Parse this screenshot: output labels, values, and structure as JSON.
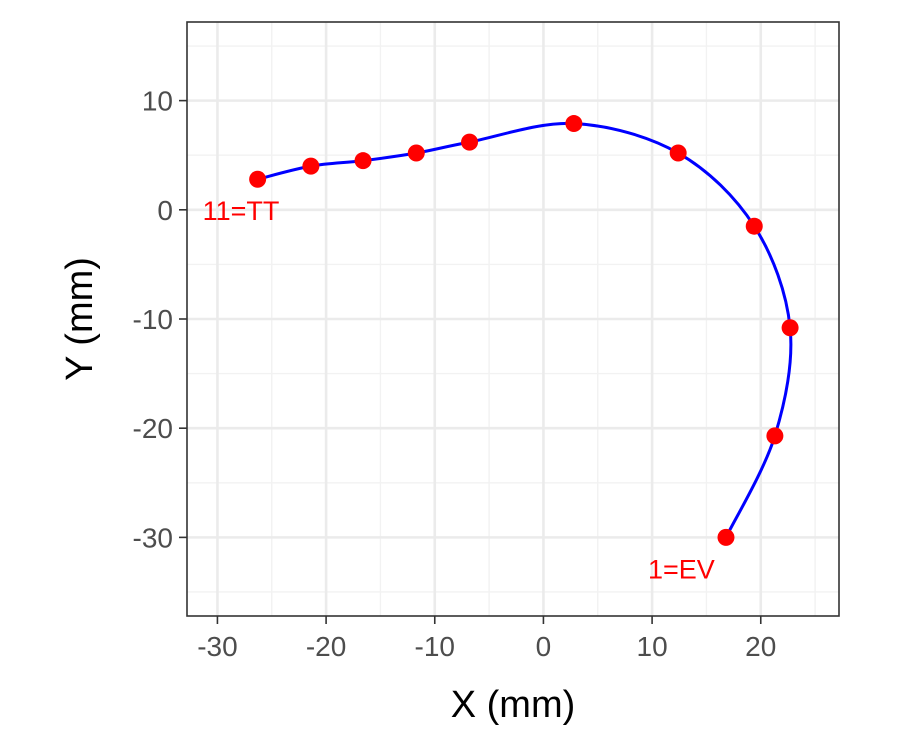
{
  "chart_data": {
    "type": "line",
    "title": "",
    "xlabel": "X (mm)",
    "ylabel": "Y (mm)",
    "xlim": [
      -32.8,
      27.2
    ],
    "ylim": [
      -37.2,
      17.2
    ],
    "x_ticks": [
      -30,
      -20,
      -10,
      0,
      10,
      20
    ],
    "y_ticks": [
      10,
      0,
      -10,
      -20,
      -30
    ],
    "x_tick_labels": [
      "-30",
      "-20",
      "-10",
      "0",
      "10",
      "20"
    ],
    "y_tick_labels": [
      "10",
      "0",
      "-10",
      "-20",
      "-30"
    ],
    "grid": true,
    "series": [
      {
        "line_color": "#0000ff",
        "point_color": "#ff0000",
        "points": [
          {
            "x": 16.8,
            "y": -30.0
          },
          {
            "x": 21.3,
            "y": -20.7
          },
          {
            "x": 22.7,
            "y": -10.8
          },
          {
            "x": 19.4,
            "y": -1.5
          },
          {
            "x": 12.4,
            "y": 5.2
          },
          {
            "x": 2.8,
            "y": 7.9
          },
          {
            "x": -6.8,
            "y": 6.2
          },
          {
            "x": -11.7,
            "y": 5.2
          },
          {
            "x": -16.6,
            "y": 4.5
          },
          {
            "x": -21.4,
            "y": 4.0
          },
          {
            "x": -26.3,
            "y": 2.8
          }
        ]
      }
    ],
    "annotations": [
      {
        "text": "1=EV",
        "x": 16.8,
        "y": -30.0,
        "color": "#ff0000"
      },
      {
        "text": "11=TT",
        "x": -26.3,
        "y": 2.8,
        "color": "#ff0000"
      }
    ]
  }
}
